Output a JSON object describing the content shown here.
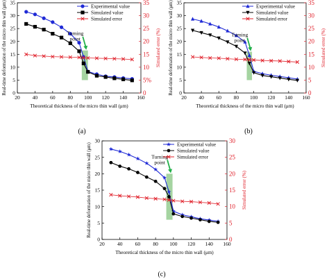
{
  "colors": {
    "experimental": "#1f2ad6",
    "simulated": "#000000",
    "error": "#e0202a",
    "turning_band": "#8ec98a",
    "arrow": "#22b04a",
    "axis": "#000000"
  },
  "chart_data": [
    {
      "type": "line",
      "panel_label": "(a)",
      "xlabel": "Theoretical thickness of the micro thin wall (μm)",
      "ylabel": "Real-time deformation of the micro thin wall (μm)",
      "y2label": "Simulated error (%)",
      "xlim": [
        20,
        160
      ],
      "ylim": [
        0,
        35
      ],
      "y2lim": [
        0,
        35
      ],
      "xticks": [
        "20",
        "40",
        "60",
        "80",
        "100",
        "120",
        "140",
        "160"
      ],
      "yticks": [
        "0",
        "5",
        "10",
        "15",
        "20",
        "25",
        "30",
        "35"
      ],
      "y2ticks": [
        "0",
        "5%",
        "10",
        "15",
        "20",
        "25",
        "30",
        "35"
      ],
      "legend_position": "top-right",
      "annotation": {
        "text": "Turning point",
        "x_range": [
          93,
          100
        ],
        "y_range": [
          5,
          16.5
        ]
      },
      "x": [
        30,
        40,
        50,
        60,
        70,
        80,
        90,
        95,
        100,
        110,
        120,
        130,
        140,
        150
      ],
      "series": [
        {
          "name": "Experimental value",
          "axis": "left",
          "marker": "circle",
          "values": [
            31.5,
            30.5,
            29,
            27.5,
            25.5,
            23,
            19.5,
            14,
            8.3,
            7.3,
            6.5,
            6.2,
            5.8,
            5.5
          ]
        },
        {
          "name": "Simulated value",
          "axis": "left",
          "marker": "square",
          "values": [
            26.8,
            25.7,
            24.6,
            23,
            21.5,
            19.3,
            16.2,
            11.5,
            8.2,
            6.7,
            6.2,
            5.7,
            5.3,
            4.9
          ]
        },
        {
          "name": "Simulated error",
          "axis": "right",
          "marker": "x",
          "values": [
            15,
            14.5,
            14.3,
            14.1,
            14,
            13.9,
            13.8,
            13.7,
            13.6,
            13.5,
            13.4,
            13.3,
            13.2,
            13
          ]
        }
      ]
    },
    {
      "type": "line",
      "panel_label": "(b)",
      "xlabel": "Theoretical thickness of the micro thin wall (μm)",
      "ylabel": "Real-time deformation of the micro thin wall (μm)",
      "y2label": "Simulated error (%)",
      "xlim": [
        20,
        160
      ],
      "ylim": [
        0,
        35
      ],
      "y2lim": [
        0,
        35
      ],
      "xticks": [
        "20",
        "40",
        "60",
        "80",
        "100",
        "120",
        "140",
        "160"
      ],
      "yticks": [
        "0",
        "5",
        "10",
        "15",
        "20",
        "25",
        "30",
        "35"
      ],
      "y2ticks": [
        "0",
        "5",
        "10",
        "15",
        "20",
        "25",
        "30",
        "35"
      ],
      "legend_position": "top-right",
      "annotation": {
        "text": "Turning point",
        "x_range": [
          92,
          98
        ],
        "y_range": [
          5,
          16
        ]
      },
      "x": [
        30,
        40,
        50,
        60,
        70,
        80,
        90,
        95,
        100,
        110,
        120,
        130,
        140,
        150
      ],
      "series": [
        {
          "name": "Experimental value",
          "axis": "left",
          "marker": "triangle-up",
          "values": [
            28.7,
            27.9,
            26.8,
            25.6,
            24.1,
            22.3,
            19.8,
            14.6,
            8.4,
            7.5,
            6.9,
            6.4,
            5.9,
            5.4
          ]
        },
        {
          "name": "Simulated value",
          "axis": "left",
          "marker": "triangle-down",
          "values": [
            24.3,
            23.4,
            22.5,
            21.3,
            19.8,
            18.1,
            15.5,
            11.5,
            7.9,
            6.8,
            6.3,
            5.8,
            5.3,
            4.9
          ]
        },
        {
          "name": "Simulated error",
          "axis": "right",
          "marker": "x",
          "values": [
            14,
            13.8,
            13.6,
            13.5,
            13.3,
            13.1,
            13,
            12.9,
            12.8,
            12.6,
            12.5,
            12.4,
            12.2,
            12
          ]
        }
      ]
    },
    {
      "type": "line",
      "panel_label": "(c)",
      "xlabel": "Theoretical thickness of the micro thin wall (μm)",
      "ylabel": "Real-time deformation of the micro thin wall (μm)",
      "y2label": "Simulated error (%)",
      "xlim": [
        20,
        160
      ],
      "ylim": [
        0,
        30
      ],
      "y2lim": [
        0,
        30
      ],
      "xticks": [
        "20",
        "40",
        "60",
        "80",
        "100",
        "120",
        "140",
        "160"
      ],
      "yticks": [
        "0",
        "5",
        "10",
        "15",
        "20",
        "25",
        "30"
      ],
      "y2ticks": [
        "0",
        "5",
        "10",
        "15",
        "20",
        "25",
        "30"
      ],
      "legend_position": "top-right",
      "annotation": {
        "text": "Turning point",
        "x_range": [
          92,
          99
        ],
        "y_range": [
          6,
          20
        ]
      },
      "x": [
        30,
        40,
        50,
        60,
        70,
        80,
        90,
        95,
        100,
        110,
        120,
        130,
        140,
        150
      ],
      "series": [
        {
          "name": "Experimental value",
          "axis": "left",
          "marker": "star",
          "values": [
            27.5,
            26.8,
            25.8,
            24.6,
            23.2,
            21.3,
            18.8,
            14.5,
            8.6,
            7.5,
            6.9,
            6.3,
            5.9,
            5.5
          ]
        },
        {
          "name": "Simulated value",
          "axis": "left",
          "marker": "hexagon",
          "values": [
            23.4,
            22.3,
            21.5,
            20.4,
            19,
            17.7,
            15.5,
            13,
            7.8,
            7,
            6.5,
            6,
            5.5,
            5.2
          ]
        },
        {
          "name": "Simulated error",
          "axis": "right",
          "marker": "x",
          "values": [
            13.6,
            13.3,
            13.1,
            12.9,
            12.6,
            12.4,
            12.2,
            12,
            11.8,
            11.6,
            11.5,
            11.3,
            11.1,
            10.8
          ]
        }
      ]
    }
  ]
}
